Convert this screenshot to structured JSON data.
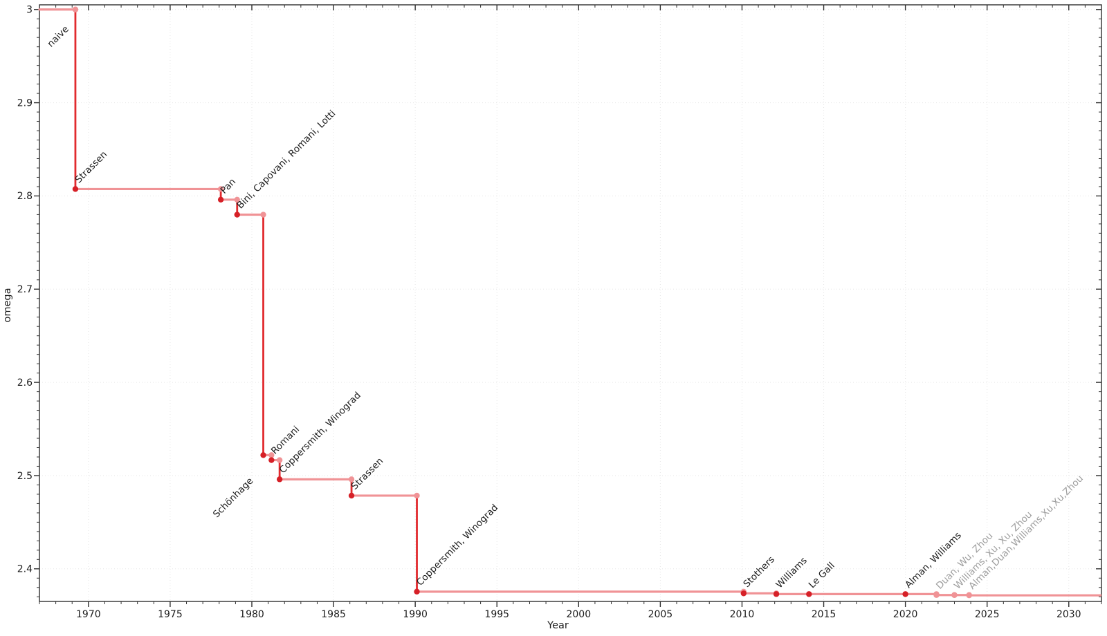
{
  "chart_data": {
    "type": "line",
    "subtype": "step-post",
    "title": "",
    "xlabel": "Year",
    "ylabel": "omega",
    "xlim": [
      1967.0,
      2032.0
    ],
    "ylim": [
      2.365,
      3.005
    ],
    "xticks": {
      "values": [
        1970,
        1975,
        1980,
        1985,
        1990,
        1995,
        2000,
        2005,
        2010,
        2015,
        2020,
        2025,
        2030
      ],
      "labels": [
        "1970",
        "1975",
        "1980",
        "1985",
        "1990",
        "1995",
        "2000",
        "2005",
        "2010",
        "2015",
        "2020",
        "2025",
        "2030"
      ]
    },
    "yticks": {
      "values": [
        2.4,
        2.5,
        2.6,
        2.7,
        2.8,
        2.9,
        3.0
      ],
      "labels": [
        "2.4",
        "2.5",
        "2.6",
        "2.7",
        "2.8",
        "2.9",
        "3"
      ]
    },
    "minor_ticks": {
      "x_step": 1,
      "y_step": 0.01
    },
    "grid": {
      "show": true,
      "style": "dotted",
      "color": "#e6e6e6"
    },
    "legend": "none",
    "colors": {
      "step_vertical": "#e12a2e",
      "step_horizontal": "#f09396",
      "point_dark": "#d62027",
      "point_light": "#f09396",
      "label_text": "#1c1c1c",
      "label_faded": "#9e9e9e",
      "tick_text": "#1c1c1c",
      "frame": "#2f2f2f",
      "background": "#ffffff"
    },
    "series": [
      {
        "label": "naive",
        "year": 1967.0,
        "omega": 3.0,
        "start": true,
        "faded": false,
        "placement": "end",
        "offset": [
          -9,
          29
        ]
      },
      {
        "label": "Strassen",
        "year": 1969.2,
        "omega": 2.8074,
        "start": false,
        "faded": false,
        "placement": "start"
      },
      {
        "label": "Pan",
        "year": 1978.1,
        "omega": 2.796,
        "start": false,
        "faded": false,
        "placement": "start"
      },
      {
        "label": "Bini, Capovani, Romani, Lotti",
        "year": 1979.1,
        "omega": 2.7799,
        "start": false,
        "faded": false,
        "placement": "start"
      },
      {
        "label": "Schönhage",
        "year": 1980.7,
        "omega": 2.522,
        "start": false,
        "faded": false,
        "placement": "end",
        "offset": [
          -14,
          38
        ]
      },
      {
        "label": "Romani",
        "year": 1981.2,
        "omega": 2.5166,
        "start": false,
        "faded": false,
        "placement": "start"
      },
      {
        "label": "Coppersmith, Winograd",
        "year": 1981.7,
        "omega": 2.496,
        "start": false,
        "faded": false,
        "placement": "start"
      },
      {
        "label": "Strassen",
        "year": 1986.1,
        "omega": 2.4785,
        "start": false,
        "faded": false,
        "placement": "start"
      },
      {
        "label": "Coppersmith, Winograd",
        "year": 1990.1,
        "omega": 2.3755,
        "start": false,
        "faded": false,
        "placement": "start"
      },
      {
        "label": "Stothers",
        "year": 2010.1,
        "omega": 2.3737,
        "start": false,
        "faded": false,
        "placement": "start"
      },
      {
        "label": "Williams",
        "year": 2012.1,
        "omega": 2.3729,
        "start": false,
        "faded": false,
        "placement": "start"
      },
      {
        "label": "Le Gall",
        "year": 2014.1,
        "omega": 2.37287,
        "start": false,
        "faded": false,
        "placement": "start"
      },
      {
        "label": "Alman, Williams",
        "year": 2020.0,
        "omega": 2.37286,
        "start": false,
        "faded": false,
        "placement": "start"
      },
      {
        "label": "Duan, Wu, Zhou",
        "year": 2021.9,
        "omega": 2.37188,
        "start": false,
        "faded": true,
        "placement": "start"
      },
      {
        "label": "Williams, Xu, Xu, Zhou",
        "year": 2023.0,
        "omega": 2.371866,
        "start": false,
        "faded": true,
        "placement": "start"
      },
      {
        "label": "Alman,Duan,Williams,Xu,Xu,Zhou",
        "year": 2023.9,
        "omega": 2.371552,
        "start": false,
        "faded": true,
        "placement": "start"
      }
    ]
  }
}
